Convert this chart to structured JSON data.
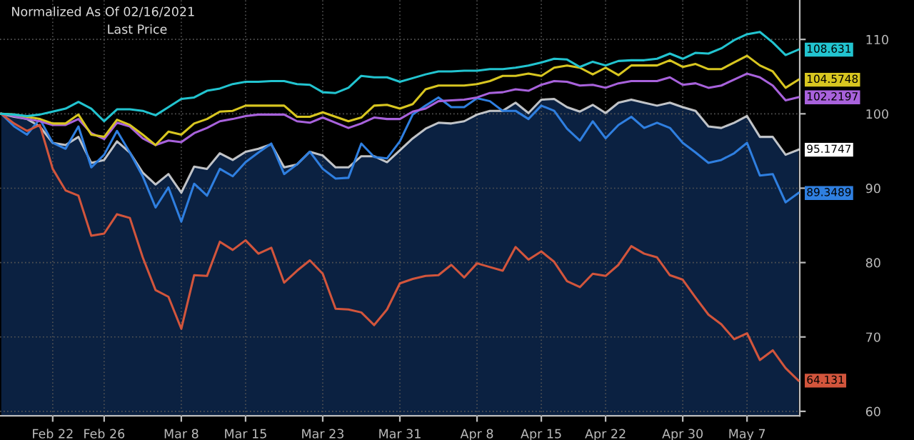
{
  "chart_data": {
    "type": "line",
    "title": "Normalized As Of 02/16/2021",
    "subtitle": "Last Price",
    "categories": [
      null,
      null,
      null,
      null,
      "Feb 22",
      null,
      null,
      null,
      "Feb 26",
      null,
      null,
      null,
      null,
      null,
      "Mar 8",
      null,
      null,
      null,
      null,
      "Mar 15",
      null,
      null,
      null,
      null,
      null,
      "Mar 23",
      null,
      null,
      null,
      null,
      null,
      "Mar 31\n2021",
      null,
      null,
      null,
      null,
      null,
      "Apr 8",
      null,
      null,
      null,
      null,
      "Apr 15",
      null,
      null,
      null,
      null,
      "Apr 22",
      null,
      null,
      null,
      null,
      null,
      "Apr 30",
      null,
      null,
      null,
      null,
      "May 7",
      null,
      null,
      null,
      null
    ],
    "series": [
      {
        "type": "area",
        "color": "#ffffff",
        "values": [
          100,
          99.6,
          99.3,
          98.3,
          96.1,
          95.8,
          96.9,
          93.4,
          93.8,
          96.3,
          94.8,
          92.1,
          90.5,
          91.9,
          89.4,
          92.9,
          92.6,
          94.7,
          93.8,
          94.9,
          95.3,
          95.9,
          92.8,
          93.2,
          94.9,
          94.4,
          92.8,
          92.8,
          94.3,
          94.3,
          93.5,
          95.1,
          96.7,
          98.0,
          98.8,
          98.7,
          99.0,
          99.9,
          100.4,
          100.4,
          101.5,
          100.1,
          101.9,
          102.0,
          100.9,
          100.3,
          101.2,
          100.1,
          101.5,
          101.9,
          101.5,
          101.1,
          101.5,
          100.9,
          100.4,
          98.3,
          98.1,
          98.8,
          99.7,
          96.9,
          96.9,
          94.5,
          95.1747
        ],
        "value_labels": [
          null,
          null,
          null,
          null,
          null,
          null,
          null,
          null,
          null,
          null,
          null,
          null,
          null,
          null,
          null,
          null,
          null,
          null,
          null,
          null,
          null,
          null,
          null,
          null,
          null,
          null,
          null,
          null,
          null,
          null,
          null,
          null,
          null,
          null,
          null,
          null,
          null,
          null,
          null,
          null,
          null,
          null,
          null,
          null,
          null,
          null,
          null,
          null,
          null,
          null,
          null,
          null,
          null,
          null,
          null,
          null,
          null,
          null,
          null,
          null,
          null,
          null,
          "95.1747"
        ]
      },
      {
        "color": "#2f7fe0",
        "values": [
          100,
          98.3,
          97.2,
          99.3,
          96.1,
          95.3,
          98.3,
          92.8,
          94.5,
          97.7,
          94.8,
          91.6,
          87.4,
          90.1,
          85.5,
          90.6,
          89.0,
          92.6,
          91.6,
          93.5,
          94.8,
          96.0,
          91.9,
          93.2,
          94.9,
          92.6,
          91.3,
          91.4,
          96.0,
          94.2,
          94.0,
          96.3,
          99.9,
          101.1,
          102.2,
          100.9,
          100.9,
          102.1,
          101.7,
          100.4,
          100.4,
          99.3,
          101.1,
          100.4,
          98.0,
          96.4,
          99.0,
          96.7,
          98.5,
          99.6,
          98.1,
          98.8,
          98.1,
          96.1,
          94.8,
          93.4,
          93.8,
          94.7,
          96.1,
          91.7,
          91.9,
          88.1,
          89.3489
        ],
        "value_labels": [
          null,
          null,
          null,
          null,
          null,
          null,
          null,
          null,
          null,
          null,
          null,
          null,
          null,
          null,
          null,
          null,
          null,
          null,
          null,
          null,
          null,
          null,
          null,
          null,
          null,
          null,
          null,
          null,
          null,
          null,
          null,
          null,
          null,
          null,
          null,
          null,
          null,
          null,
          null,
          null,
          null,
          null,
          null,
          null,
          null,
          null,
          null,
          null,
          null,
          null,
          null,
          null,
          null,
          null,
          null,
          null,
          null,
          null,
          null,
          null,
          null,
          null,
          "89.3489"
        ]
      },
      {
        "color": "#d2553c",
        "values": [
          100,
          98.7,
          97.7,
          98.5,
          92.6,
          89.7,
          89.0,
          83.6,
          83.9,
          86.5,
          86.0,
          80.7,
          76.3,
          75.4,
          71.1,
          78.3,
          78.2,
          82.8,
          81.7,
          83.0,
          81.2,
          82.0,
          77.3,
          78.9,
          80.3,
          78.5,
          73.8,
          73.7,
          73.3,
          71.6,
          73.7,
          77.2,
          77.8,
          78.2,
          78.3,
          79.7,
          78.0,
          79.9,
          79.4,
          78.9,
          82.1,
          80.4,
          81.5,
          80.1,
          77.5,
          76.7,
          78.5,
          78.2,
          79.7,
          82.2,
          81.2,
          80.7,
          78.3,
          77.7,
          75.3,
          73.0,
          71.7,
          69.7,
          70.5,
          66.9,
          68.2,
          65.8,
          64.131
        ],
        "value_labels": [
          null,
          null,
          null,
          null,
          null,
          null,
          null,
          null,
          null,
          null,
          null,
          null,
          null,
          null,
          null,
          null,
          null,
          null,
          null,
          null,
          null,
          null,
          null,
          null,
          null,
          null,
          null,
          null,
          null,
          null,
          null,
          null,
          null,
          null,
          null,
          null,
          null,
          null,
          null,
          null,
          null,
          null,
          null,
          null,
          null,
          null,
          null,
          null,
          null,
          null,
          null,
          null,
          null,
          null,
          null,
          null,
          null,
          null,
          null,
          null,
          null,
          null,
          "64.131"
        ]
      },
      {
        "color": "#a862dc",
        "values": [
          100,
          99.7,
          99.3,
          99.0,
          98.5,
          98.5,
          99.3,
          97.4,
          96.6,
          98.8,
          98.3,
          96.7,
          95.8,
          96.4,
          96.2,
          97.4,
          98.1,
          99.0,
          99.3,
          99.7,
          99.9,
          99.9,
          99.9,
          99.0,
          98.8,
          99.5,
          98.8,
          98.1,
          98.7,
          99.5,
          99.3,
          99.3,
          100.3,
          100.7,
          101.7,
          101.8,
          101.9,
          102.2,
          102.8,
          102.9,
          103.3,
          103.1,
          103.9,
          104.4,
          104.3,
          103.8,
          103.9,
          103.5,
          104.1,
          104.4,
          104.4,
          104.4,
          104.9,
          103.9,
          104.1,
          103.5,
          103.8,
          104.6,
          105.4,
          104.9,
          103.8,
          101.8,
          102.2197
        ],
        "value_labels": [
          null,
          null,
          null,
          null,
          null,
          null,
          null,
          null,
          null,
          null,
          null,
          null,
          null,
          null,
          null,
          null,
          null,
          null,
          null,
          null,
          null,
          null,
          null,
          null,
          null,
          null,
          null,
          null,
          null,
          null,
          null,
          null,
          null,
          null,
          null,
          null,
          null,
          null,
          null,
          null,
          null,
          null,
          null,
          null,
          null,
          null,
          null,
          null,
          null,
          null,
          null,
          null,
          null,
          null,
          null,
          null,
          null,
          null,
          null,
          null,
          null,
          null,
          "102.2197"
        ]
      },
      {
        "color": "#d8c620",
        "values": [
          100,
          99.9,
          99.6,
          99.3,
          98.7,
          98.7,
          99.9,
          97.2,
          96.9,
          99.2,
          98.5,
          97.2,
          95.8,
          97.6,
          97.2,
          98.7,
          99.3,
          100.3,
          100.4,
          101.1,
          101.1,
          101.1,
          101.1,
          99.6,
          99.6,
          100.2,
          99.6,
          99.0,
          99.5,
          101.1,
          101.2,
          100.7,
          101.3,
          103.3,
          103.8,
          103.8,
          103.8,
          104.0,
          104.4,
          105.1,
          105.1,
          105.4,
          105.1,
          106.2,
          106.5,
          106.2,
          105.3,
          106.2,
          105.2,
          106.5,
          106.5,
          106.5,
          107.2,
          106.3,
          106.7,
          106.0,
          106.0,
          106.9,
          107.8,
          106.5,
          105.7,
          103.5,
          104.5748
        ],
        "value_labels": [
          null,
          null,
          null,
          null,
          null,
          null,
          null,
          null,
          null,
          null,
          null,
          null,
          null,
          null,
          null,
          null,
          null,
          null,
          null,
          null,
          null,
          null,
          null,
          null,
          null,
          null,
          null,
          null,
          null,
          null,
          null,
          null,
          null,
          null,
          null,
          null,
          null,
          null,
          null,
          null,
          null,
          null,
          null,
          null,
          null,
          null,
          null,
          null,
          null,
          null,
          null,
          null,
          null,
          null,
          null,
          null,
          null,
          null,
          null,
          null,
          null,
          null,
          "104.5748"
        ]
      },
      {
        "color": "#22c4d0",
        "values": [
          100,
          99.9,
          99.7,
          99.9,
          100.3,
          100.7,
          101.6,
          100.7,
          99.0,
          100.6,
          100.6,
          100.4,
          99.8,
          100.9,
          102.0,
          102.2,
          103.1,
          103.4,
          104.0,
          104.3,
          104.3,
          104.4,
          104.4,
          104.0,
          103.9,
          102.9,
          102.8,
          103.5,
          105.1,
          104.9,
          104.9,
          104.3,
          104.8,
          105.3,
          105.7,
          105.7,
          105.8,
          105.8,
          106.0,
          106.0,
          106.2,
          106.5,
          106.9,
          107.4,
          107.3,
          106.3,
          107.0,
          106.5,
          107.1,
          107.2,
          107.2,
          107.4,
          108.1,
          107.4,
          108.2,
          108.1,
          108.8,
          109.9,
          110.7,
          111.0,
          109.6,
          107.9,
          108.631
        ],
        "value_labels": [
          null,
          null,
          null,
          null,
          null,
          null,
          null,
          null,
          null,
          null,
          null,
          null,
          null,
          null,
          null,
          null,
          null,
          null,
          null,
          null,
          null,
          null,
          null,
          null,
          null,
          null,
          null,
          null,
          null,
          null,
          null,
          null,
          null,
          null,
          null,
          null,
          null,
          null,
          null,
          null,
          null,
          null,
          null,
          null,
          null,
          null,
          null,
          null,
          null,
          null,
          null,
          null,
          null,
          null,
          null,
          null,
          null,
          null,
          null,
          null,
          null,
          null,
          "108.631"
        ]
      }
    ],
    "ylim": [
      59.4,
      115.3
    ],
    "yticks": [
      60,
      70,
      80,
      90,
      100,
      110
    ],
    "grid": true
  }
}
